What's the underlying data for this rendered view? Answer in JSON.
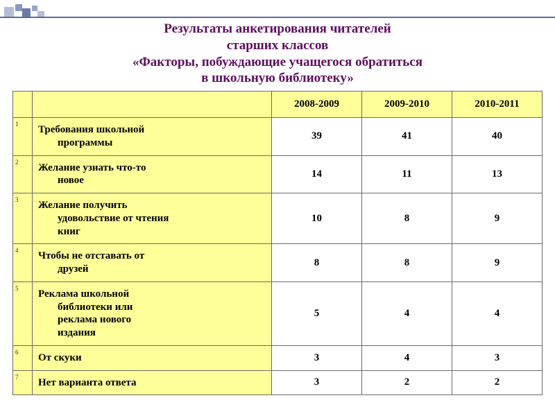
{
  "title_lines": [
    "Результаты анкетирования читателей",
    "старших классов",
    "«Факторы, побуждающие учащегося обратиться",
    "в школьную библиотеку»"
  ],
  "colors": {
    "title_color": "#5d0e5d",
    "header_bg": "#ffff99",
    "factor_bg": "#ffff99",
    "value_bg": "#ffffff",
    "border": "#6a6a6a",
    "decor_line": "#5c6b99"
  },
  "table": {
    "year_headers": [
      "2008-2009",
      "2009-2010",
      "2010-2011"
    ],
    "rows": [
      {
        "n": "1",
        "factor_lines": [
          "Требования школьной",
          "программы"
        ],
        "vals": [
          "39",
          "41",
          "40"
        ]
      },
      {
        "n": "2",
        "factor_lines": [
          "Желание узнать что-то",
          "новое"
        ],
        "vals": [
          "14",
          "11",
          "13"
        ]
      },
      {
        "n": "3",
        "factor_lines": [
          "Желание получить",
          "удовольствие от чтения",
          "книг"
        ],
        "vals": [
          "10",
          "8",
          "9"
        ]
      },
      {
        "n": "4",
        "factor_lines": [
          "Чтобы не отставать от",
          "друзей"
        ],
        "vals": [
          "8",
          "8",
          "9"
        ]
      },
      {
        "n": "5",
        "factor_lines": [
          "Реклама школьной",
          "библиотеки или",
          "реклама нового",
          "издания"
        ],
        "vals": [
          "5",
          "4",
          "4"
        ]
      },
      {
        "n": "6",
        "factor_lines": [
          "От скуки"
        ],
        "vals": [
          "3",
          "4",
          "3"
        ]
      },
      {
        "n": "7",
        "factor_lines": [
          "Нет варианта ответа"
        ],
        "vals": [
          "3",
          "2",
          "2"
        ]
      }
    ]
  }
}
